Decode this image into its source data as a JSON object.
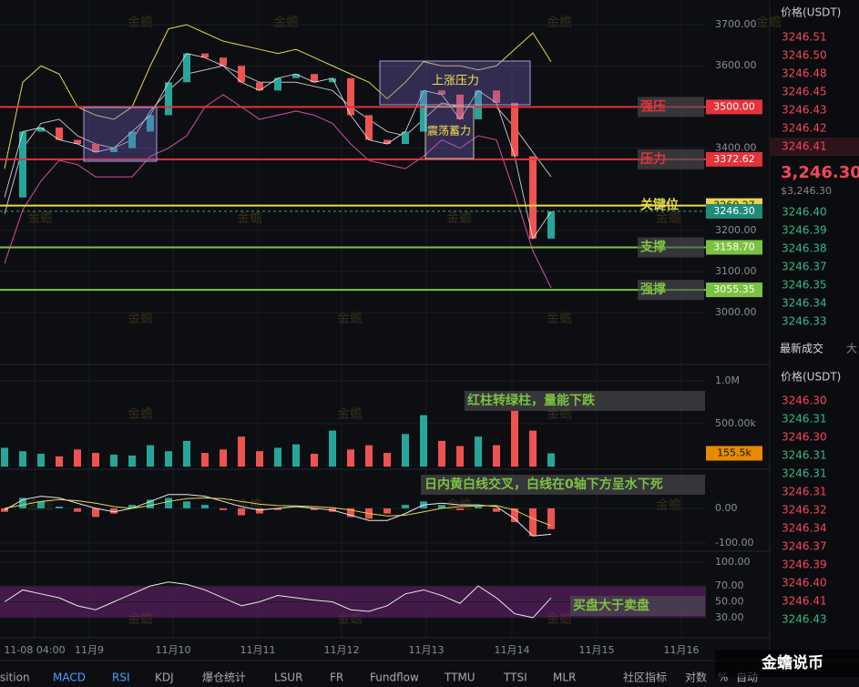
{
  "chart_data": {
    "type": "line",
    "price": {
      "ylim": [
        2874,
        3760
      ],
      "yticks": [
        {
          "value": 3000,
          "label": "3000.00"
        },
        {
          "value": 3100,
          "label": "3100.00"
        },
        {
          "value": 3200,
          "label": "3200.00"
        },
        {
          "value": 3400,
          "label": "3400.00"
        },
        {
          "value": 3600,
          "label": "3600.00"
        },
        {
          "value": 3700,
          "label": "3700.00"
        }
      ],
      "close": [
        3280,
        3440,
        3450,
        3420,
        3410,
        3390,
        3400,
        3440,
        3480,
        3560,
        3630,
        3620,
        3600,
        3560,
        3540,
        3570,
        3580,
        3560,
        3570,
        3480,
        3420,
        3410,
        3440,
        3540,
        3530,
        3470,
        3540,
        3510,
        3380,
        3180,
        3246
      ],
      "color": "#e8e8e8",
      "upper": [
        3350,
        3560,
        3600,
        3580,
        3500,
        3480,
        3470,
        3500,
        3600,
        3690,
        3700,
        3680,
        3660,
        3650,
        3640,
        3630,
        3640,
        3620,
        3600,
        3580,
        3560,
        3520,
        3560,
        3610,
        3600,
        3600,
        3590,
        3600,
        3640,
        3680,
        3610
      ],
      "mid": [
        3240,
        3400,
        3460,
        3470,
        3430,
        3410,
        3400,
        3420,
        3490,
        3540,
        3580,
        3590,
        3600,
        3580,
        3560,
        3560,
        3560,
        3550,
        3540,
        3500,
        3470,
        3440,
        3430,
        3470,
        3510,
        3500,
        3500,
        3500,
        3450,
        3390,
        3330
      ],
      "lower": [
        3120,
        3250,
        3320,
        3370,
        3360,
        3330,
        3330,
        3330,
        3380,
        3400,
        3430,
        3500,
        3530,
        3500,
        3470,
        3480,
        3490,
        3480,
        3460,
        3410,
        3370,
        3360,
        3350,
        3380,
        3420,
        3400,
        3430,
        3420,
        3290,
        3150,
        3060
      ],
      "band_colors": [
        "#e6d84a",
        "#bfbfbf",
        "#d14fa5"
      ]
    },
    "levels": [
      {
        "name": "强压",
        "value": 3500,
        "value_label": "3500.00",
        "color": "#e5323b"
      },
      {
        "name": "压力",
        "value": 3372.62,
        "value_label": "3372.62",
        "color": "#e5323b"
      },
      {
        "name": "关键位",
        "value": 3260.27,
        "value_label": "3260.27",
        "color": "#e6d84a"
      },
      {
        "name": "支撑",
        "value": 3158.7,
        "value_label": "3158.70",
        "color": "#7cc242"
      },
      {
        "name": "强撑",
        "value": 3055.35,
        "value_label": "3055.35",
        "color": "#7cc242"
      }
    ],
    "current": {
      "value": 3246.3,
      "label": "3246.30"
    },
    "boxes": [
      "上涨压力",
      "震荡蓄力"
    ],
    "volume": {
      "ylim": [
        -30000,
        1190000
      ],
      "yticks": [
        {
          "value": 1000000,
          "label": "1.0M"
        },
        {
          "value": 500000,
          "label": "500.00k"
        }
      ],
      "values": [
        220000,
        180000,
        150000,
        120000,
        200000,
        160000,
        140000,
        130000,
        250000,
        180000,
        300000,
        160000,
        200000,
        350000,
        180000,
        220000,
        260000,
        150000,
        420000,
        200000,
        250000,
        160000,
        380000,
        600000,
        300000,
        240000,
        350000,
        250000,
        650000,
        420000,
        155500
      ],
      "current": {
        "value": 155500,
        "label": "155.5k"
      },
      "note": "红柱转绿柱，量能下跌"
    },
    "macd": {
      "ylim": [
        -124,
        113
      ],
      "yticks": [
        {
          "value": 0,
          "label": "0.00"
        },
        {
          "value": -100,
          "label": "-100.00"
        }
      ],
      "values": [
        -10,
        30,
        20,
        5,
        -10,
        -25,
        -15,
        10,
        25,
        30,
        20,
        10,
        -5,
        -20,
        -15,
        -5,
        0,
        -5,
        -10,
        -25,
        -30,
        -15,
        10,
        20,
        10,
        -5,
        5,
        -10,
        -40,
        -80,
        -60
      ],
      "dif": [
        -5,
        25,
        35,
        30,
        15,
        0,
        -10,
        0,
        20,
        40,
        40,
        35,
        20,
        5,
        -5,
        0,
        5,
        0,
        -5,
        -20,
        -35,
        -35,
        -15,
        10,
        15,
        10,
        10,
        5,
        -30,
        -80,
        -75
      ],
      "dea": [
        0,
        10,
        20,
        25,
        22,
        15,
        5,
        0,
        8,
        20,
        28,
        30,
        28,
        20,
        12,
        8,
        7,
        5,
        2,
        -5,
        -15,
        -22,
        -20,
        -10,
        0,
        5,
        7,
        8,
        -5,
        -30,
        -50
      ],
      "line_colors": [
        "#e8e8e8",
        "#e6d84a"
      ],
      "note": "日内黄白线交叉，白线在0轴下方呈水下死"
    },
    "rsi": {
      "ylim": [
        4.6,
        113.8
      ],
      "yticks": [
        {
          "value": 100,
          "label": "100.00"
        },
        {
          "value": 70,
          "label": "70.00"
        },
        {
          "value": 50,
          "label": "50.00"
        },
        {
          "value": 30,
          "label": "30.00"
        }
      ],
      "band": [
        30,
        70
      ],
      "values": [
        50,
        65,
        60,
        55,
        45,
        40,
        50,
        60,
        70,
        75,
        72,
        65,
        55,
        45,
        50,
        58,
        55,
        52,
        50,
        40,
        38,
        45,
        60,
        65,
        58,
        48,
        70,
        55,
        35,
        30,
        55
      ],
      "color": "#e8e8e8",
      "note": "买盘大于卖盘"
    },
    "xticks": [
      "11-08 04:00",
      "11月9",
      "11月10",
      "11月11",
      "11月12",
      "11月13",
      "11月14",
      "11月15",
      "11月16"
    ],
    "watermark": "金蟾"
  },
  "orderbook": {
    "header": "价格(USDT)",
    "asks": [
      "3246.51",
      "3246.50",
      "3246.48",
      "3246.45",
      "3246.43",
      "3246.42",
      "3246.41"
    ],
    "last": "3,246.30",
    "last_usd": "$3,246.30",
    "bids": [
      "3246.40",
      "3246.39",
      "3246.38",
      "3246.37",
      "3246.35",
      "3246.34",
      "3246.33"
    ],
    "trades_title": "最新成交",
    "trades_tab": "大",
    "trades_header": "价格(USDT)",
    "trades": [
      {
        "p": "3246.30",
        "side": "sell"
      },
      {
        "p": "3246.31",
        "side": "buy"
      },
      {
        "p": "3246.30",
        "side": "sell"
      },
      {
        "p": "3246.31",
        "side": "buy"
      },
      {
        "p": "3246.31",
        "side": "buy"
      },
      {
        "p": "3246.31",
        "side": "sell"
      },
      {
        "p": "3246.32",
        "side": "sell"
      },
      {
        "p": "3246.34",
        "side": "sell"
      },
      {
        "p": "3246.37",
        "side": "sell"
      },
      {
        "p": "3246.39",
        "side": "sell"
      },
      {
        "p": "3246.40",
        "side": "sell"
      },
      {
        "p": "3246.41",
        "side": "sell"
      },
      {
        "p": "3246.43",
        "side": "buy"
      }
    ]
  },
  "toolbar": [
    "sition",
    "MACD",
    "RSI",
    "KDJ",
    "爆仓统计",
    "LSUR",
    "FR",
    "Fundflow",
    "TTMU",
    "TTSI",
    "MLR",
    "社区指标",
    "对数",
    "%",
    "自动"
  ],
  "brand": "金蟾说币"
}
